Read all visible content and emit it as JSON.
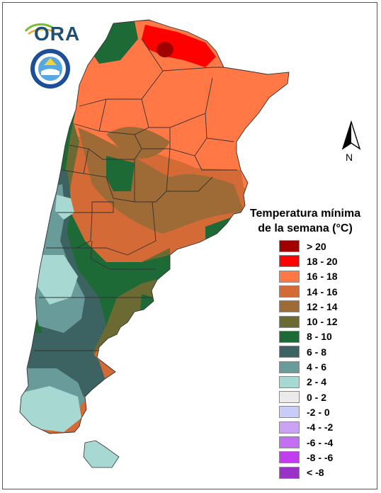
{
  "logo": {
    "text": "ORA"
  },
  "compass": {
    "label": "N"
  },
  "legend": {
    "title_line1": "Temperatura mínima",
    "title_line2": "de la semana (°C)",
    "items": [
      {
        "label": "> 20",
        "color": "#a00000"
      },
      {
        "label": "18 - 20",
        "color": "#ff0000"
      },
      {
        "label": "16 - 18",
        "color": "#ff7845"
      },
      {
        "label": "14 - 16",
        "color": "#d46a35"
      },
      {
        "label": "12 - 14",
        "color": "#9e6a36"
      },
      {
        "label": "10 - 12",
        "color": "#6b6a32"
      },
      {
        "label": "8 - 10",
        "color": "#1e6a37"
      },
      {
        "label": "6 - 8",
        "color": "#3d6262"
      },
      {
        "label": "4 - 6",
        "color": "#699b9b"
      },
      {
        "label": "2 - 4",
        "color": "#a7d8d2"
      },
      {
        "label": "0 - 2",
        "color": "#ebebeb"
      },
      {
        "label": "-2 - 0",
        "color": "#c8ccf6"
      },
      {
        "label": "-4 - -2",
        "color": "#cba3f3"
      },
      {
        "label": "-6 - -4",
        "color": "#c36ef3"
      },
      {
        "label": "-8 - -6",
        "color": "#c33cf0"
      },
      {
        "label": "< -8",
        "color": "#9b32c8"
      }
    ]
  }
}
